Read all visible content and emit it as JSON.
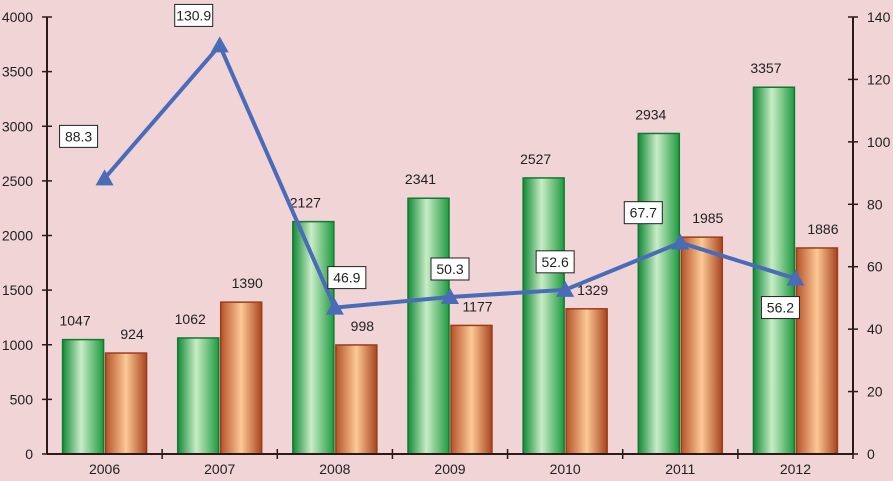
{
  "chart_data": {
    "type": "bar+line",
    "categories": [
      "2006",
      "2007",
      "2008",
      "2009",
      "2010",
      "2011",
      "2012"
    ],
    "series": [
      {
        "type": "bar",
        "axis": "left",
        "color": "#2e9e4a",
        "values": [
          1047,
          1062,
          2127,
          2341,
          2527,
          2934,
          3357
        ]
      },
      {
        "type": "bar",
        "axis": "left",
        "color": "#c8703a",
        "values": [
          924,
          1390,
          998,
          1177,
          1329,
          1985,
          1886
        ]
      },
      {
        "type": "line",
        "axis": "right",
        "color": "#4a6cb8",
        "marker": "triangle",
        "values": [
          88.3,
          130.9,
          46.9,
          50.3,
          52.6,
          67.7,
          56.2
        ]
      }
    ],
    "ylim_left": [
      0,
      4000
    ],
    "yticks_left": [
      0,
      500,
      1000,
      1500,
      2000,
      2500,
      3000,
      3500,
      4000
    ],
    "ylim_right": [
      0,
      140
    ],
    "yticks_right": [
      0,
      20,
      40,
      60,
      80,
      100,
      120,
      140
    ],
    "grid": false,
    "legend": "none"
  }
}
